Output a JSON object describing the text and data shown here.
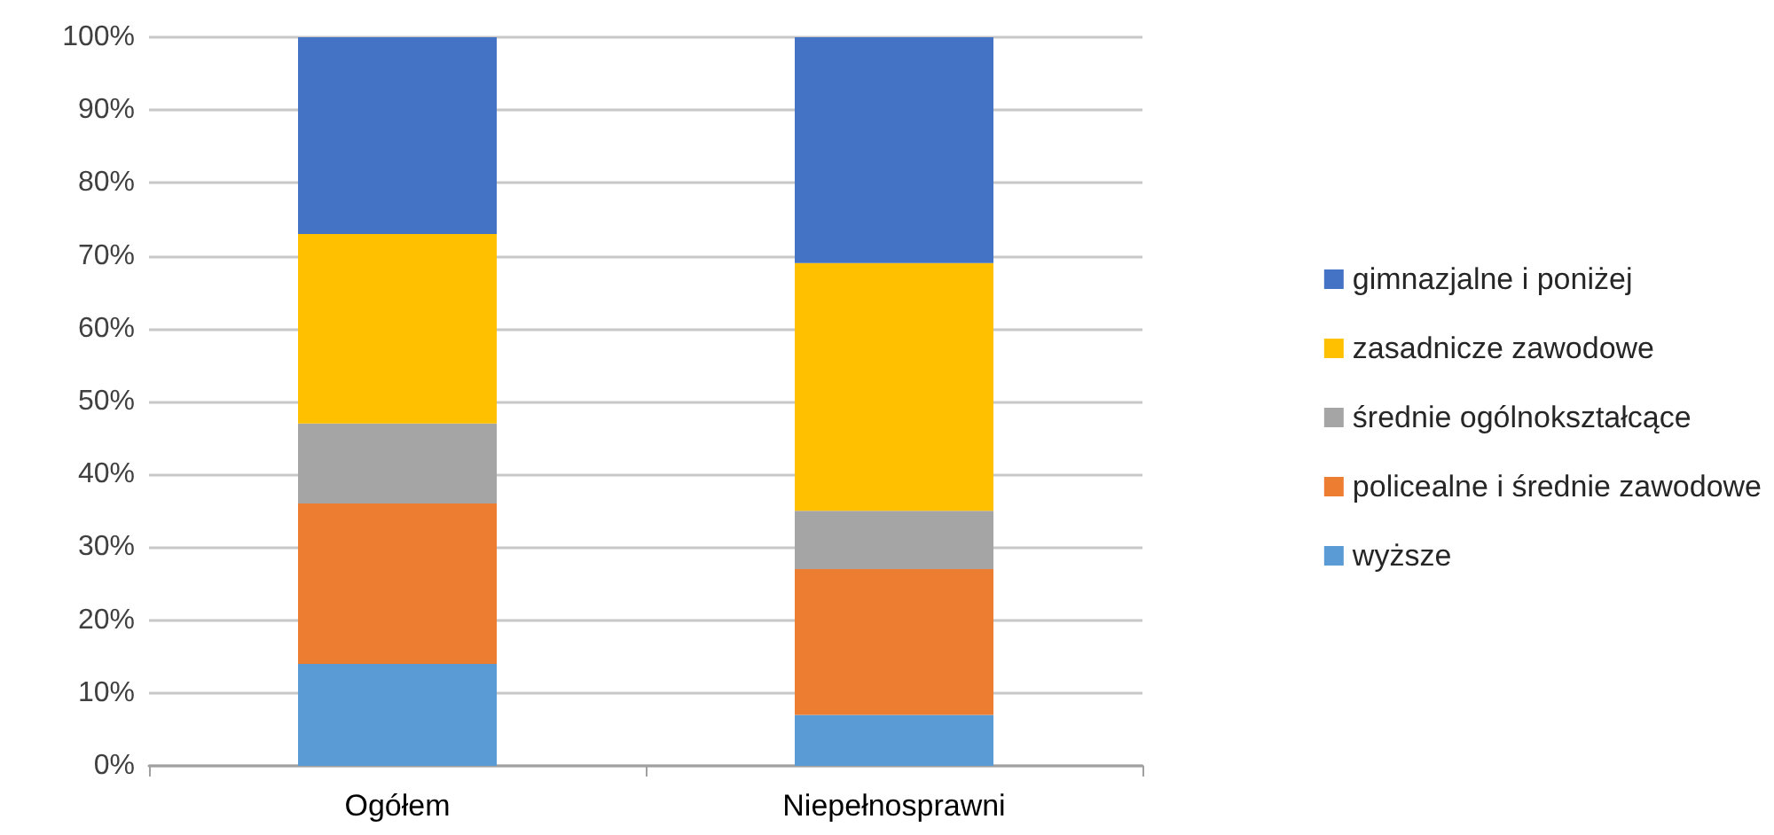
{
  "chart_data": {
    "type": "bar",
    "stacked": true,
    "categories": [
      "Ogółem",
      "Niepełnosprawni"
    ],
    "series": [
      {
        "name": "wyższe",
        "color": "#5b9bd5",
        "values": [
          14,
          7
        ]
      },
      {
        "name": "policealne i średnie zawodowe",
        "color": "#ed7d31",
        "values": [
          22,
          20
        ]
      },
      {
        "name": "średnie ogólnokształcące",
        "color": "#a5a5a5",
        "values": [
          11,
          8
        ]
      },
      {
        "name": "zasadnicze zawodowe",
        "color": "#ffc000",
        "values": [
          26,
          34
        ]
      },
      {
        "name": "gimnazjalne i poniżej",
        "color": "#4472c4",
        "values": [
          27,
          31
        ]
      }
    ],
    "ylim": [
      0,
      100
    ],
    "yticks": [
      {
        "value": 0,
        "label": "0%"
      },
      {
        "value": 10,
        "label": "10%"
      },
      {
        "value": 20,
        "label": "20%"
      },
      {
        "value": 30,
        "label": "30%"
      },
      {
        "value": 40,
        "label": "40%"
      },
      {
        "value": 50,
        "label": "50%"
      },
      {
        "value": 60,
        "label": "60%"
      },
      {
        "value": 70,
        "label": "70%"
      },
      {
        "value": 80,
        "label": "80%"
      },
      {
        "value": 90,
        "label": "90%"
      },
      {
        "value": 100,
        "label": "100%"
      }
    ],
    "grid": "y",
    "legend": "right"
  }
}
